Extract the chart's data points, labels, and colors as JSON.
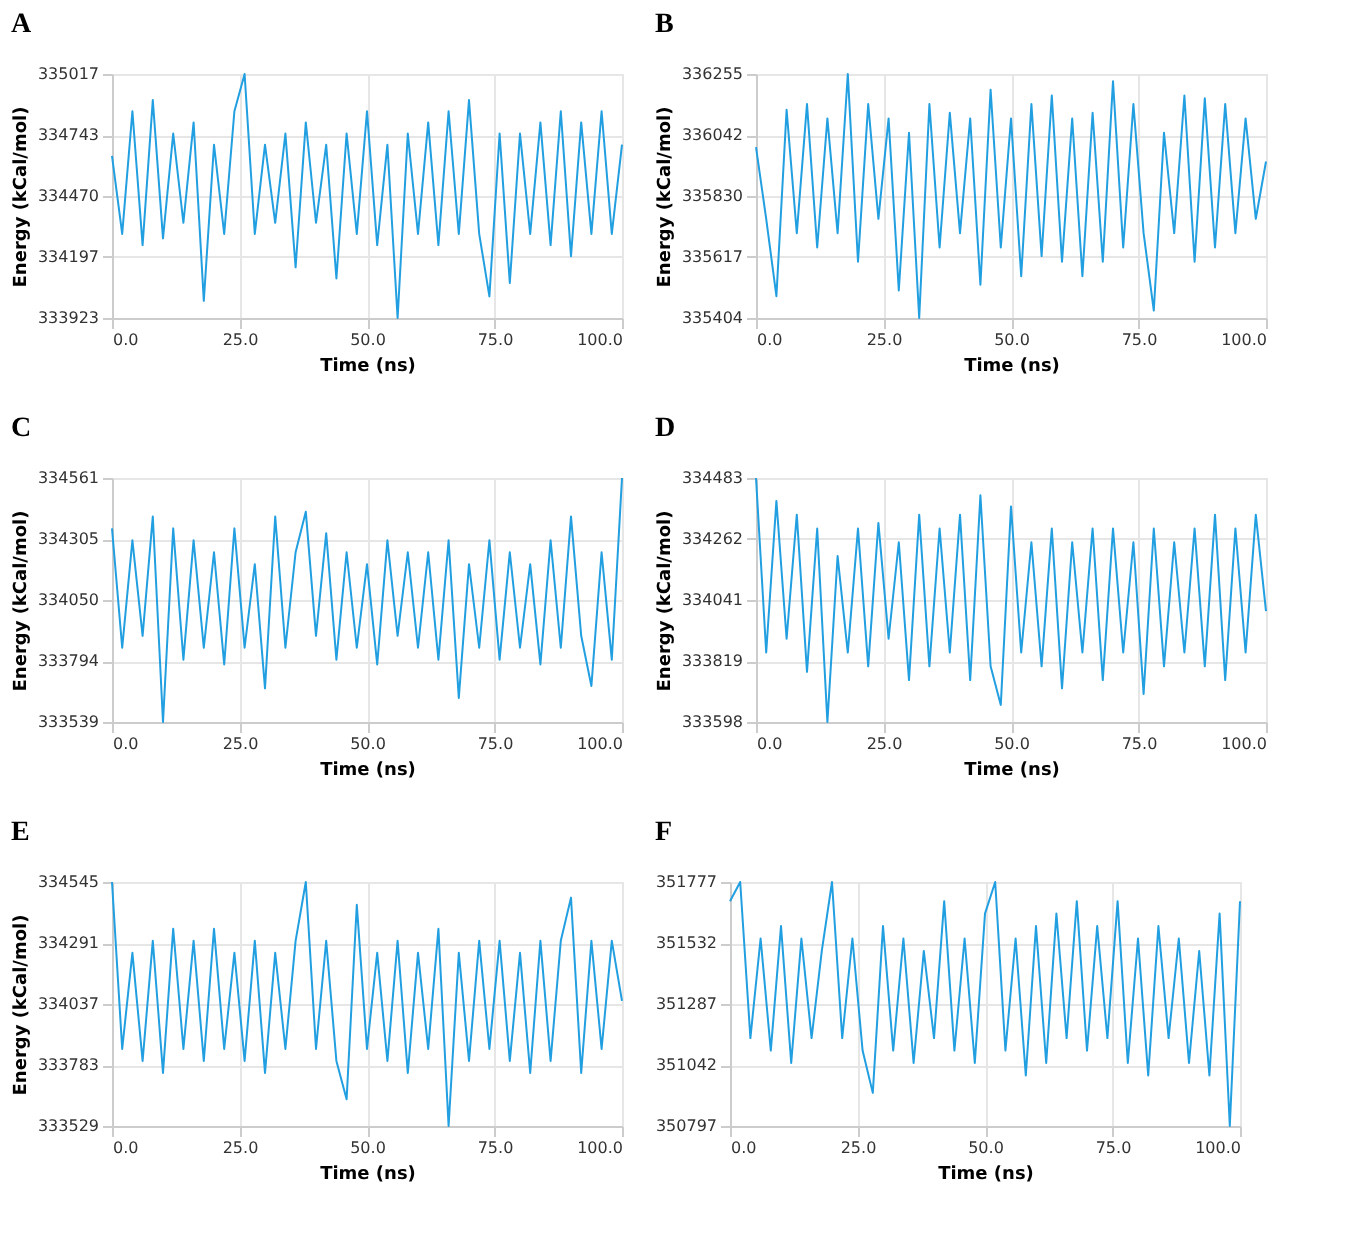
{
  "chart_data": [
    {
      "type": "line",
      "title": "A",
      "xlabel": "Time (ns)",
      "ylabel": "Energy (kCal/mol)",
      "grid": true,
      "color": "#229fe0",
      "x": [
        0,
        2,
        4,
        6,
        8,
        10,
        12,
        14,
        16,
        18,
        20,
        22,
        24,
        26,
        28,
        30,
        32,
        34,
        36,
        38,
        40,
        42,
        44,
        46,
        48,
        50,
        52,
        54,
        56,
        58,
        60,
        62,
        64,
        66,
        68,
        70,
        72,
        74,
        76,
        78,
        80,
        82,
        84,
        86,
        88,
        90,
        92,
        94,
        96,
        98,
        100
      ],
      "values": [
        334650,
        334300,
        334850,
        334250,
        334900,
        334280,
        334750,
        334350,
        334800,
        334000,
        334700,
        334300,
        334850,
        335017,
        334300,
        334700,
        334350,
        334750,
        334150,
        334800,
        334350,
        334700,
        334100,
        334750,
        334300,
        334850,
        334250,
        334700,
        333923,
        334750,
        334300,
        334800,
        334250,
        334850,
        334300,
        334900,
        334300,
        334020,
        334750,
        334080,
        334750,
        334300,
        334800,
        334250,
        334850,
        334200,
        334800,
        334300,
        334850,
        334300,
        334700
      ],
      "xlim": [
        0,
        100
      ],
      "xticks": [
        {
          "value": 0,
          "label": "0.0"
        },
        {
          "value": 25,
          "label": "25.0"
        },
        {
          "value": 50,
          "label": "50.0"
        },
        {
          "value": 75,
          "label": "75.0"
        },
        {
          "value": 100,
          "label": "100.0"
        }
      ],
      "ylim": [
        333923,
        335017
      ],
      "yticks": [
        333923,
        334197,
        334470,
        334743,
        335017
      ]
    },
    {
      "type": "line",
      "title": "B",
      "xlabel": "Time (ns)",
      "ylabel": "Energy (kCal/mol)",
      "grid": true,
      "color": "#229fe0",
      "x": [
        0,
        2,
        4,
        6,
        8,
        10,
        12,
        14,
        16,
        18,
        20,
        22,
        24,
        26,
        28,
        30,
        32,
        34,
        36,
        38,
        40,
        42,
        44,
        46,
        48,
        50,
        52,
        54,
        56,
        58,
        60,
        62,
        64,
        66,
        68,
        70,
        72,
        74,
        76,
        78,
        80,
        82,
        84,
        86,
        88,
        90,
        92,
        94,
        96,
        98,
        100
      ],
      "values": [
        336000,
        335750,
        335480,
        336130,
        335700,
        336150,
        335650,
        336100,
        335700,
        336255,
        335600,
        336150,
        335750,
        336100,
        335500,
        336050,
        335404,
        336150,
        335650,
        336120,
        335700,
        336100,
        335520,
        336200,
        335650,
        336100,
        335550,
        336150,
        335620,
        336180,
        335600,
        336100,
        335550,
        336120,
        335600,
        336230,
        335650,
        336150,
        335700,
        335430,
        336050,
        335700,
        336180,
        335600,
        336170,
        335650,
        336150,
        335700,
        336100,
        335750,
        335950
      ],
      "xlim": [
        0,
        100
      ],
      "xticks": [
        {
          "value": 0,
          "label": "0.0"
        },
        {
          "value": 25,
          "label": "25.0"
        },
        {
          "value": 50,
          "label": "50.0"
        },
        {
          "value": 75,
          "label": "75.0"
        },
        {
          "value": 100,
          "label": "100.0"
        }
      ],
      "ylim": [
        335404,
        336255
      ],
      "yticks": [
        335404,
        335617,
        335830,
        336042,
        336255
      ]
    },
    {
      "type": "line",
      "title": "C",
      "xlabel": "Time (ns)",
      "ylabel": "Energy (kCal/mol)",
      "grid": true,
      "color": "#229fe0",
      "x": [
        0,
        2,
        4,
        6,
        8,
        10,
        12,
        14,
        16,
        18,
        20,
        22,
        24,
        26,
        28,
        30,
        32,
        34,
        36,
        38,
        40,
        42,
        44,
        46,
        48,
        50,
        52,
        54,
        56,
        58,
        60,
        62,
        64,
        66,
        68,
        70,
        72,
        74,
        76,
        78,
        80,
        82,
        84,
        86,
        88,
        90,
        92,
        94,
        96,
        98,
        100
      ],
      "values": [
        334350,
        333850,
        334300,
        333900,
        334400,
        333539,
        334350,
        333800,
        334300,
        333850,
        334250,
        333780,
        334350,
        333850,
        334200,
        333680,
        334400,
        333850,
        334250,
        334420,
        333900,
        334330,
        333800,
        334250,
        333850,
        334200,
        333780,
        334300,
        333900,
        334250,
        333850,
        334250,
        333800,
        334300,
        333640,
        334200,
        333850,
        334300,
        333800,
        334250,
        333850,
        334200,
        333780,
        334300,
        333850,
        334400,
        333900,
        333690,
        334250,
        333800,
        334561
      ],
      "xlim": [
        0,
        100
      ],
      "xticks": [
        {
          "value": 0,
          "label": "0.0"
        },
        {
          "value": 25,
          "label": "25.0"
        },
        {
          "value": 50,
          "label": "50.0"
        },
        {
          "value": 75,
          "label": "75.0"
        },
        {
          "value": 100,
          "label": "100.0"
        }
      ],
      "ylim": [
        333539,
        334561
      ],
      "yticks": [
        333539,
        333794,
        334050,
        334305,
        334561
      ]
    },
    {
      "type": "line",
      "title": "D",
      "xlabel": "Time (ns)",
      "ylabel": "Energy (kCal/mol)",
      "grid": true,
      "color": "#229fe0",
      "x": [
        0,
        2,
        4,
        6,
        8,
        10,
        12,
        14,
        16,
        18,
        20,
        22,
        24,
        26,
        28,
        30,
        32,
        34,
        36,
        38,
        40,
        42,
        44,
        46,
        48,
        50,
        52,
        54,
        56,
        58,
        60,
        62,
        64,
        66,
        68,
        70,
        72,
        74,
        76,
        78,
        80,
        82,
        84,
        86,
        88,
        90,
        92,
        94,
        96,
        98,
        100
      ],
      "values": [
        334483,
        333850,
        334400,
        333900,
        334350,
        333780,
        334300,
        333598,
        334200,
        333850,
        334300,
        333800,
        334320,
        333900,
        334250,
        333750,
        334350,
        333800,
        334300,
        333850,
        334350,
        333750,
        334420,
        333800,
        333660,
        334380,
        333850,
        334250,
        333800,
        334300,
        333720,
        334250,
        333850,
        334300,
        333750,
        334300,
        333850,
        334250,
        333700,
        334300,
        333800,
        334250,
        333850,
        334300,
        333800,
        334350,
        333750,
        334300,
        333850,
        334350,
        334000
      ],
      "xlim": [
        0,
        100
      ],
      "xticks": [
        {
          "value": 0,
          "label": "0.0"
        },
        {
          "value": 25,
          "label": "25.0"
        },
        {
          "value": 50,
          "label": "50.0"
        },
        {
          "value": 75,
          "label": "75.0"
        },
        {
          "value": 100,
          "label": "100.0"
        }
      ],
      "ylim": [
        333598,
        334483
      ],
      "yticks": [
        333598,
        333819,
        334041,
        334262,
        334483
      ]
    },
    {
      "type": "line",
      "title": "E",
      "xlabel": "Time (ns)",
      "ylabel": "Energy (kCal/mol)",
      "grid": true,
      "color": "#229fe0",
      "x": [
        0,
        2,
        4,
        6,
        8,
        10,
        12,
        14,
        16,
        18,
        20,
        22,
        24,
        26,
        28,
        30,
        32,
        34,
        36,
        38,
        40,
        42,
        44,
        46,
        48,
        50,
        52,
        54,
        56,
        58,
        60,
        62,
        64,
        66,
        68,
        70,
        72,
        74,
        76,
        78,
        80,
        82,
        84,
        86,
        88,
        90,
        92,
        94,
        96,
        98,
        100
      ],
      "values": [
        334545,
        333850,
        334250,
        333800,
        334300,
        333750,
        334350,
        333850,
        334300,
        333800,
        334350,
        333850,
        334250,
        333800,
        334300,
        333750,
        334250,
        333850,
        334300,
        334545,
        333850,
        334300,
        333800,
        333640,
        334450,
        333850,
        334250,
        333800,
        334300,
        333750,
        334250,
        333850,
        334350,
        333529,
        334250,
        333800,
        334300,
        333850,
        334300,
        333800,
        334250,
        333750,
        334300,
        333800,
        334300,
        334480,
        333750,
        334300,
        333850,
        334300,
        334050
      ],
      "xlim": [
        0,
        100
      ],
      "xticks": [
        {
          "value": 0,
          "label": "0.0"
        },
        {
          "value": 25,
          "label": "25.0"
        },
        {
          "value": 50,
          "label": "50.0"
        },
        {
          "value": 75,
          "label": "75.0"
        },
        {
          "value": 100,
          "label": "100.0"
        }
      ],
      "ylim": [
        333529,
        334545
      ],
      "yticks": [
        333529,
        333783,
        334037,
        334291,
        334545
      ]
    },
    {
      "type": "line",
      "title": "F",
      "xlabel": "Time (ns)",
      "grid": true,
      "color": "#229fe0",
      "x": [
        0,
        2,
        4,
        6,
        8,
        10,
        12,
        14,
        16,
        18,
        20,
        22,
        24,
        26,
        28,
        30,
        32,
        34,
        36,
        38,
        40,
        42,
        44,
        46,
        48,
        50,
        52,
        54,
        56,
        58,
        60,
        62,
        64,
        66,
        68,
        70,
        72,
        74,
        76,
        78,
        80,
        82,
        84,
        86,
        88,
        90,
        92,
        94,
        96,
        98,
        100
      ],
      "values": [
        351700,
        351777,
        351150,
        351550,
        351100,
        351600,
        351050,
        351550,
        351150,
        351500,
        351777,
        351150,
        351550,
        351100,
        350930,
        351600,
        351100,
        351550,
        351050,
        351500,
        351150,
        351700,
        351100,
        351550,
        351050,
        351650,
        351777,
        351100,
        351550,
        351000,
        351600,
        351050,
        351650,
        351150,
        351700,
        351100,
        351600,
        351150,
        351700,
        351050,
        351550,
        351000,
        351600,
        351150,
        351550,
        351050,
        351500,
        351000,
        351650,
        350797,
        351700
      ],
      "xlim": [
        0,
        100
      ],
      "xticks": [
        {
          "value": 0,
          "label": "0.0"
        },
        {
          "value": 25,
          "label": "25.0"
        },
        {
          "value": 50,
          "label": "50.0"
        },
        {
          "value": 75,
          "label": "75.0"
        },
        {
          "value": 100,
          "label": "100.0"
        }
      ],
      "ylim": [
        350797,
        351777
      ],
      "yticks": [
        350797,
        351042,
        351287,
        351532,
        351777
      ]
    }
  ]
}
